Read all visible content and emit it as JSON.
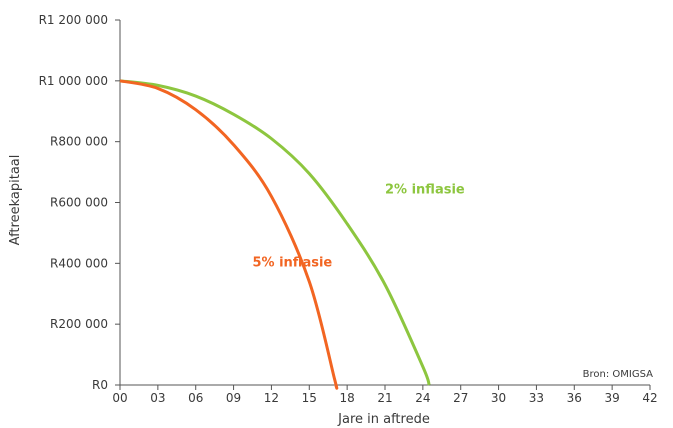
{
  "chart_data": {
    "type": "line",
    "xlabel": "Jare in aftrede",
    "ylabel": "Aftreekapitaal",
    "source": "Bron: OMIGSA",
    "xlim": [
      0,
      42
    ],
    "ylim": [
      0,
      1200000
    ],
    "x_ticks": [
      0,
      3,
      6,
      9,
      12,
      15,
      18,
      21,
      24,
      27,
      30,
      33,
      36,
      39,
      42
    ],
    "x_tick_labels": [
      "00",
      "03",
      "06",
      "09",
      "12",
      "15",
      "18",
      "21",
      "24",
      "27",
      "30",
      "33",
      "36",
      "39",
      "42"
    ],
    "y_ticks": [
      0,
      200000,
      400000,
      600000,
      800000,
      1000000,
      1200000
    ],
    "y_tick_labels": [
      "R0",
      "R200 000",
      "R400 000",
      "R600 000",
      "R800 000",
      "R1 000 000",
      "R1 200 000"
    ],
    "grid": false,
    "series": [
      {
        "name": "2% inflasie",
        "color": "#8dc63f",
        "x": [
          0,
          3,
          6,
          9,
          12,
          15,
          18,
          21,
          24,
          24.5
        ],
        "y": [
          1000000,
          985000,
          950000,
          890000,
          810000,
          695000,
          530000,
          330000,
          60000,
          0
        ]
      },
      {
        "name": "5% inflasie",
        "color": "#f26522",
        "x": [
          0,
          3,
          6,
          9,
          12,
          15,
          17,
          17.1
        ],
        "y": [
          1000000,
          975000,
          905000,
          790000,
          620000,
          340000,
          20000,
          0
        ]
      }
    ],
    "series_label_positions": [
      [
        21,
        630000
      ],
      [
        10.5,
        390000
      ]
    ]
  }
}
